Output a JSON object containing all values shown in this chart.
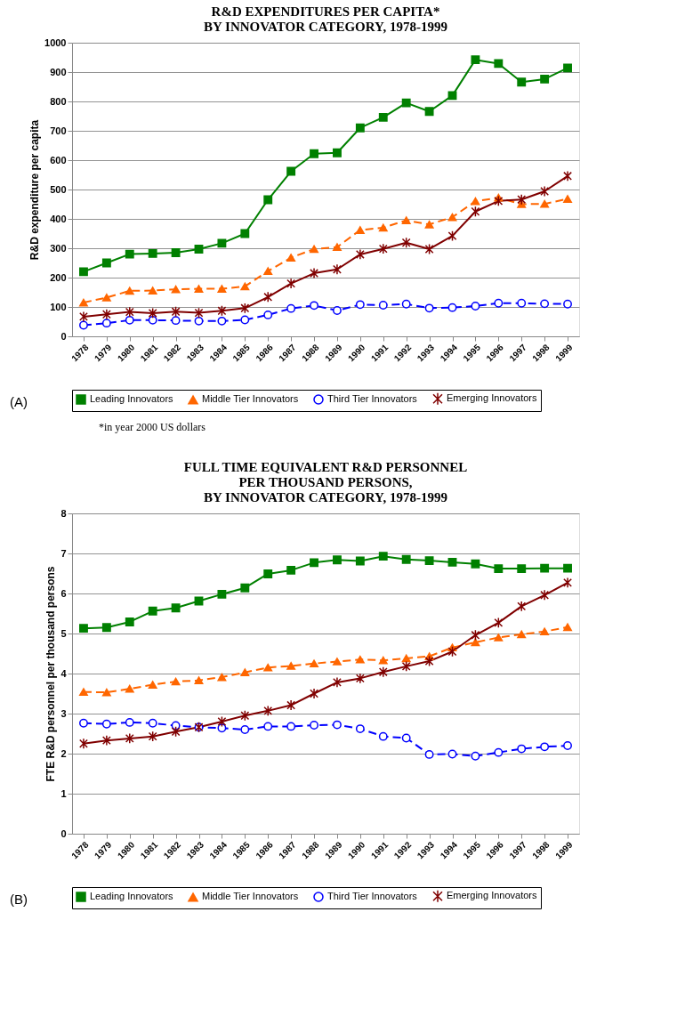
{
  "chart_data": [
    {
      "type": "line",
      "title": "R&D EXPENDITURES PER CAPITA*\nBY INNOVATOR CATEGORY, 1978-1999",
      "ylabel": "R&D expenditure per capita",
      "categories": [
        "1978",
        "1979",
        "1980",
        "1981",
        "1982",
        "1983",
        "1984",
        "1985",
        "1986",
        "1987",
        "1988",
        "1989",
        "1990",
        "1991",
        "1992",
        "1993",
        "1994",
        "1995",
        "1996",
        "1997",
        "1998",
        "1999"
      ],
      "series": [
        {
          "name": "Leading Innovators",
          "color": "#008000",
          "marker": "square",
          "line_style": "solid",
          "values": [
            220,
            250,
            280,
            282,
            285,
            297,
            317,
            350,
            465,
            562,
            622,
            625,
            710,
            746,
            795,
            766,
            820,
            942,
            929,
            866,
            876,
            914
          ]
        },
        {
          "name": "Middle Tier Innovators",
          "color": "#ff6600",
          "marker": "triangle",
          "line_style": "dashed",
          "values": [
            115,
            132,
            155,
            156,
            160,
            162,
            162,
            170,
            222,
            268,
            297,
            304,
            362,
            370,
            395,
            381,
            406,
            460,
            472,
            450,
            451,
            468
          ]
        },
        {
          "name": "Third Tier Innovators",
          "color": "#0000ff",
          "marker": "circle",
          "line_style": "dashed",
          "values": [
            38,
            45,
            55,
            55,
            54,
            52,
            52,
            56,
            73,
            95,
            105,
            88,
            108,
            106,
            110,
            96,
            98,
            103,
            113,
            113,
            111,
            110
          ]
        },
        {
          "name": "Emerging Innovators",
          "color": "#800000",
          "marker": "cross",
          "line_style": "solid",
          "values": [
            67,
            75,
            83,
            79,
            84,
            80,
            87,
            96,
            134,
            180,
            215,
            228,
            279,
            298,
            319,
            297,
            342,
            425,
            461,
            466,
            494,
            546
          ]
        }
      ],
      "ylim": [
        0,
        1000
      ],
      "yticks": [
        0,
        100,
        200,
        300,
        400,
        500,
        600,
        700,
        800,
        900,
        1000
      ],
      "grid": "y",
      "legend": "bottom",
      "annotations": [
        "(A)",
        "*in year 2000 US dollars"
      ]
    },
    {
      "type": "line",
      "title": "FULL TIME EQUIVALENT R&D PERSONNEL\nPER THOUSAND PERSONS,\nBY INNOVATOR CATEGORY, 1978-1999",
      "ylabel": "FTE R&D personnel per thousand persons",
      "categories": [
        "1978",
        "1979",
        "1980",
        "1981",
        "1982",
        "1983",
        "1984",
        "1985",
        "1986",
        "1987",
        "1988",
        "1989",
        "1990",
        "1991",
        "1992",
        "1993",
        "1994",
        "1995",
        "1996",
        "1997",
        "1998",
        "1999"
      ],
      "series": [
        {
          "name": "Leading Innovators",
          "color": "#008000",
          "marker": "square",
          "line_style": "solid",
          "values": [
            5.13,
            5.15,
            5.29,
            5.56,
            5.64,
            5.81,
            5.98,
            6.14,
            6.49,
            6.58,
            6.77,
            6.84,
            6.81,
            6.93,
            6.85,
            6.82,
            6.78,
            6.74,
            6.62,
            6.62,
            6.63,
            6.63
          ]
        },
        {
          "name": "Middle Tier Innovators",
          "color": "#ff6600",
          "marker": "triangle",
          "line_style": "dashed",
          "values": [
            3.54,
            3.53,
            3.62,
            3.72,
            3.8,
            3.83,
            3.91,
            4.03,
            4.15,
            4.19,
            4.25,
            4.3,
            4.35,
            4.33,
            4.38,
            4.43,
            4.65,
            4.78,
            4.9,
            4.98,
            5.05,
            5.16
          ]
        },
        {
          "name": "Third Tier Innovators",
          "color": "#0000ff",
          "marker": "circle",
          "line_style": "dashed",
          "values": [
            2.76,
            2.74,
            2.78,
            2.76,
            2.7,
            2.66,
            2.64,
            2.6,
            2.68,
            2.68,
            2.71,
            2.72,
            2.62,
            2.43,
            2.39,
            1.98,
            1.99,
            1.94,
            2.03,
            2.12,
            2.17,
            2.2
          ]
        },
        {
          "name": "Emerging Innovators",
          "color": "#800000",
          "marker": "cross",
          "line_style": "solid",
          "values": [
            2.25,
            2.33,
            2.38,
            2.43,
            2.55,
            2.66,
            2.8,
            2.95,
            3.07,
            3.21,
            3.5,
            3.78,
            3.88,
            4.04,
            4.18,
            4.31,
            4.55,
            4.96,
            5.27,
            5.68,
            5.96,
            6.27
          ]
        }
      ],
      "ylim": [
        0,
        8
      ],
      "yticks": [
        0,
        1,
        2,
        3,
        4,
        5,
        6,
        7,
        8
      ],
      "grid": "y",
      "legend": "bottom",
      "annotations": [
        "(B)"
      ]
    }
  ]
}
